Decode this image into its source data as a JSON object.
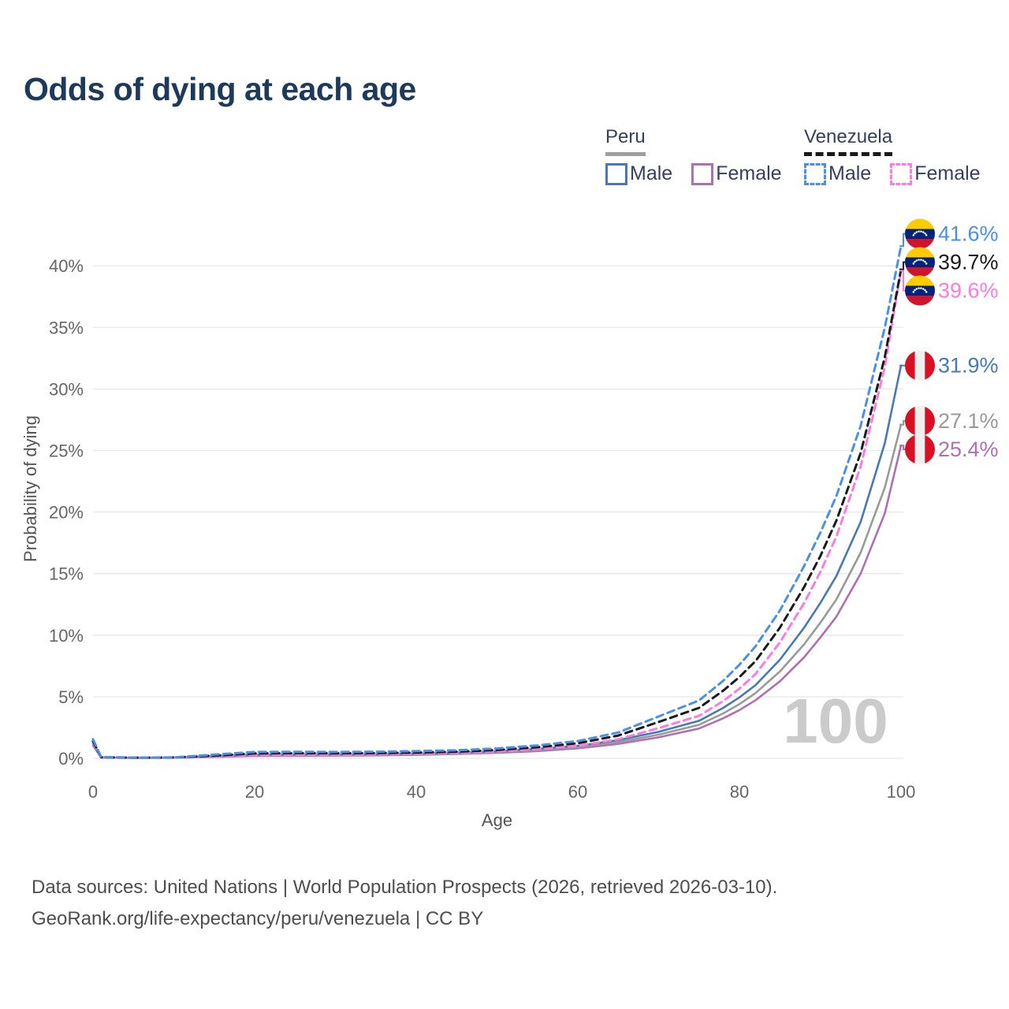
{
  "title": "Odds of dying at each age",
  "legend": {
    "groups": [
      {
        "label": "Peru",
        "line_style": "solid",
        "underline_color": "#9e9e9e",
        "items": [
          {
            "label": "Male",
            "color": "#4779b5"
          },
          {
            "label": "Female",
            "color": "#b06fb0"
          }
        ]
      },
      {
        "label": "Venezuela",
        "line_style": "dashed",
        "underline_color": "#1a1a1a",
        "items": [
          {
            "label": "Male",
            "color": "#4a90e8"
          },
          {
            "label": "Female",
            "color": "#fb7ce1"
          }
        ]
      }
    ]
  },
  "chart_data": {
    "type": "line",
    "title": "Odds of dying at each age",
    "xlabel": "Age",
    "ylabel": "Probability of dying",
    "xlim": [
      0,
      100
    ],
    "ylim_percent": [
      0,
      43
    ],
    "x_ticks": [
      0,
      20,
      40,
      60,
      80,
      100
    ],
    "y_ticks_percent": [
      0,
      5,
      10,
      15,
      20,
      25,
      30,
      35,
      40
    ],
    "grid": true,
    "legend_position": "top-right",
    "watermark": "100",
    "x": [
      0,
      1,
      5,
      10,
      15,
      20,
      25,
      30,
      35,
      40,
      45,
      50,
      55,
      60,
      65,
      70,
      75,
      78,
      80,
      82,
      85,
      88,
      90,
      92,
      95,
      98,
      100
    ],
    "series": [
      {
        "name": "Venezuela Male",
        "country": "Venezuela",
        "sex": "Male",
        "color": "#4a90e8",
        "dashed": true,
        "flag": "venezuela",
        "end_label": "41.6%",
        "end_value_percent": 41.6,
        "values_percent": [
          1.55,
          0.1,
          0.06,
          0.08,
          0.3,
          0.52,
          0.53,
          0.52,
          0.54,
          0.58,
          0.65,
          0.8,
          1.05,
          1.4,
          2.1,
          3.4,
          4.7,
          6.3,
          7.6,
          9.1,
          12.0,
          15.6,
          18.3,
          21.3,
          27.0,
          35.0,
          41.6
        ]
      },
      {
        "name": "Venezuela Both sexes",
        "country": "Venezuela",
        "sex": "Both",
        "color": "#1a1a1a",
        "dashed": true,
        "flag": "venezuela",
        "end_label": "39.7%",
        "end_value_percent": 39.7,
        "values_percent": [
          1.4,
          0.09,
          0.05,
          0.07,
          0.22,
          0.4,
          0.42,
          0.41,
          0.43,
          0.47,
          0.54,
          0.68,
          0.9,
          1.22,
          1.85,
          2.95,
          4.1,
          5.5,
          6.6,
          7.9,
          10.6,
          13.9,
          16.4,
          19.3,
          24.8,
          32.6,
          39.7
        ]
      },
      {
        "name": "Venezuela Female",
        "country": "Venezuela",
        "sex": "Female",
        "color": "#fb7ce1",
        "dashed": true,
        "flag": "venezuela",
        "end_label": "39.6%",
        "end_value_percent": 39.6,
        "values_percent": [
          1.3,
          0.08,
          0.05,
          0.06,
          0.15,
          0.27,
          0.29,
          0.3,
          0.33,
          0.37,
          0.44,
          0.56,
          0.75,
          1.02,
          1.55,
          2.45,
          3.45,
          4.65,
          5.65,
          6.85,
          9.4,
          12.6,
          15.1,
          18.0,
          23.7,
          31.8,
          39.6
        ]
      },
      {
        "name": "Peru Male",
        "country": "Peru",
        "sex": "Male",
        "color": "#4779b5",
        "dashed": false,
        "flag": "peru",
        "end_label": "31.9%",
        "end_value_percent": 31.9,
        "values_percent": [
          1.25,
          0.08,
          0.05,
          0.06,
          0.18,
          0.31,
          0.33,
          0.33,
          0.35,
          0.39,
          0.46,
          0.58,
          0.76,
          1.02,
          1.48,
          2.15,
          3.05,
          4.1,
          4.95,
          5.95,
          8.0,
          10.6,
          12.6,
          14.8,
          19.2,
          25.6,
          31.9
        ]
      },
      {
        "name": "Peru Both sexes",
        "country": "Peru",
        "sex": "Both",
        "color": "#9a9a9a",
        "dashed": false,
        "flag": "peru",
        "end_label": "27.1%",
        "end_value_percent": 27.1,
        "values_percent": [
          1.15,
          0.07,
          0.04,
          0.05,
          0.14,
          0.25,
          0.27,
          0.27,
          0.29,
          0.33,
          0.4,
          0.51,
          0.67,
          0.91,
          1.32,
          1.92,
          2.72,
          3.65,
          4.4,
          5.3,
          7.05,
          9.25,
          11.0,
          12.9,
          16.7,
          22.0,
          27.1
        ]
      },
      {
        "name": "Peru Female",
        "country": "Peru",
        "sex": "Female",
        "color": "#b06fb0",
        "dashed": false,
        "flag": "peru",
        "end_label": "25.4%",
        "end_value_percent": 25.4,
        "values_percent": [
          1.05,
          0.06,
          0.04,
          0.05,
          0.11,
          0.19,
          0.21,
          0.22,
          0.24,
          0.28,
          0.35,
          0.45,
          0.59,
          0.81,
          1.17,
          1.7,
          2.42,
          3.25,
          3.92,
          4.72,
          6.25,
          8.2,
          9.8,
          11.5,
          15.0,
          19.9,
          25.4
        ]
      }
    ]
  },
  "footer": {
    "line1": "Data sources: United Nations | World Population Prospects (2026, retrieved 2026-03-10).",
    "line2": "GeoRank.org/life-expectancy/peru/venezuela | CC BY"
  }
}
